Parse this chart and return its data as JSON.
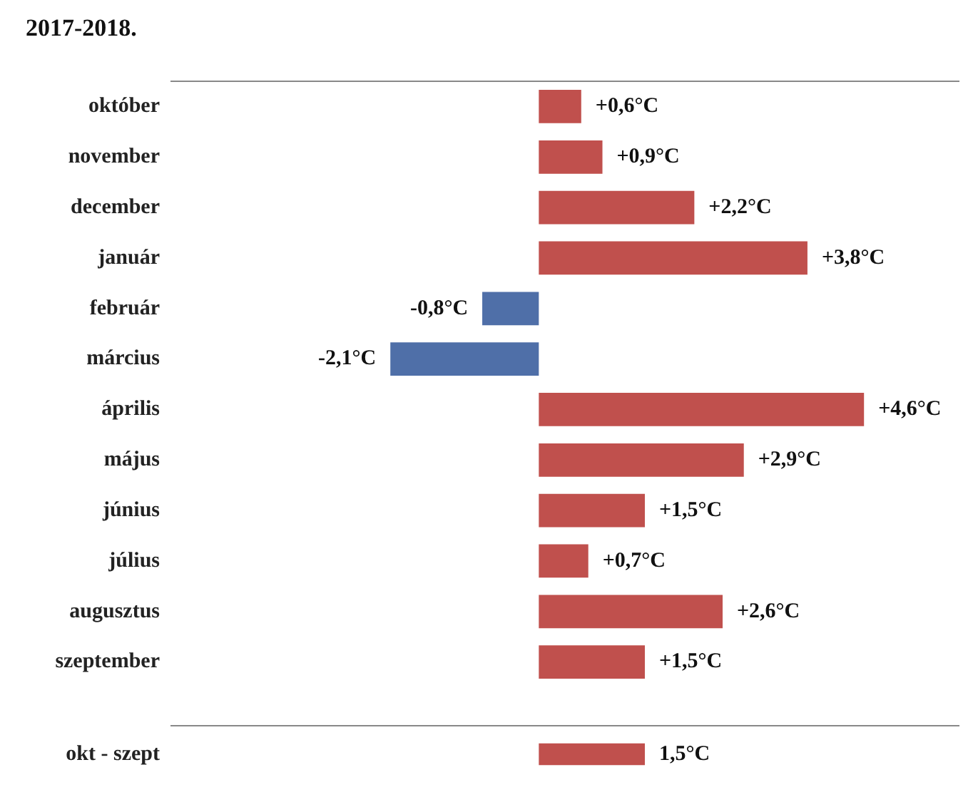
{
  "chart_data": [
    {
      "type": "bar",
      "orientation": "horizontal",
      "title": "2017-2018.",
      "categories": [
        "október",
        "november",
        "december",
        "január",
        "február",
        "március",
        "április",
        "május",
        "június",
        "július",
        "augusztus",
        "szeptember"
      ],
      "values": [
        0.6,
        0.9,
        2.2,
        3.8,
        -0.8,
        -2.1,
        4.6,
        2.9,
        1.5,
        0.7,
        2.6,
        1.5
      ],
      "colors": [
        "#c0504d",
        "#c0504d",
        "#c0504d",
        "#c0504d",
        "#4f6fa8",
        "#4f6fa8",
        "#c0504d",
        "#c0504d",
        "#c0504d",
        "#c0504d",
        "#c0504d",
        "#c0504d"
      ],
      "value_labels": [
        "+0,6°C",
        "+0,9°C",
        "+2,2°C",
        "+3,8°C",
        "-0,8°C",
        "-2,1°C",
        "+4,6°C",
        "+2,9°C",
        "+1,5°C",
        "+0,7°C",
        "+2,6°C",
        "+1,5°C"
      ],
      "xlim": [
        -5.2,
        5.94
      ],
      "tick_labels": "y"
    },
    {
      "type": "bar",
      "orientation": "horizontal",
      "categories": [
        "okt - szept"
      ],
      "values": [
        1.5
      ],
      "colors": [
        "#c0504d"
      ],
      "value_labels": [
        "1,5°C"
      ],
      "tick_labels": "y"
    }
  ]
}
